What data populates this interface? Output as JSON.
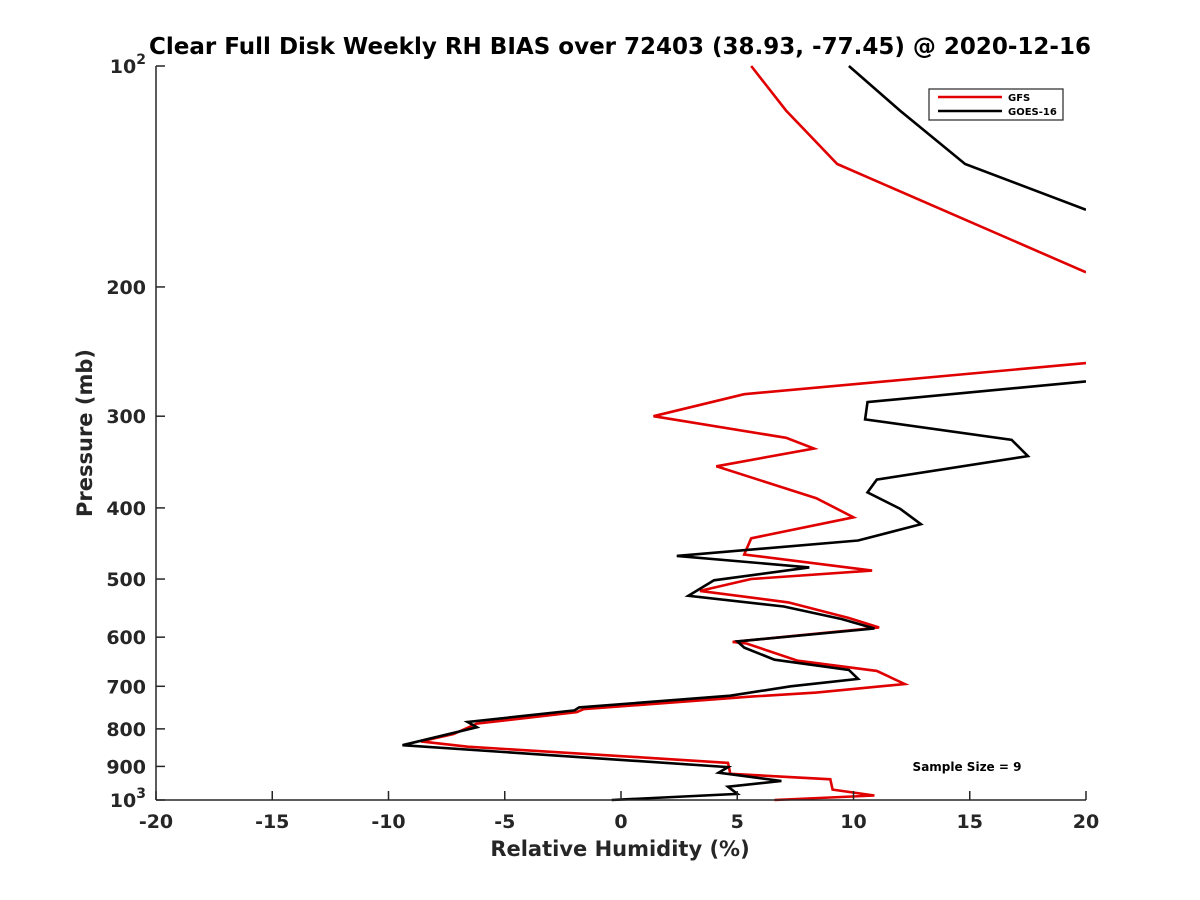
{
  "chart_data": {
    "type": "line",
    "title": "Clear Full Disk Weekly RH BIAS over 72403 (38.93, -77.45) @ 2020-12-16",
    "xlabel": "Relative Humidity (%)",
    "ylabel": "Pressure (mb)",
    "xlim": [
      -20,
      20
    ],
    "ylim": [
      1000,
      100
    ],
    "y_scale": "log",
    "y_reversed": true,
    "grid": false,
    "legend_position": "top-right",
    "x_ticks": [
      -20,
      -15,
      -10,
      -5,
      0,
      5,
      10,
      15,
      20
    ],
    "x_tick_labels": [
      "-20",
      "-15",
      "-10",
      "-5",
      "0",
      "5",
      "10",
      "15",
      "20"
    ],
    "y_ticks": [
      100,
      200,
      300,
      400,
      500,
      600,
      700,
      800,
      900,
      1000
    ],
    "y_tick_labels": [
      {
        "base": "10",
        "exp": "2"
      },
      {
        "base": "200",
        "exp": ""
      },
      {
        "base": "300",
        "exp": ""
      },
      {
        "base": "400",
        "exp": ""
      },
      {
        "base": "500",
        "exp": ""
      },
      {
        "base": "600",
        "exp": ""
      },
      {
        "base": "700",
        "exp": ""
      },
      {
        "base": "800",
        "exp": ""
      },
      {
        "base": "900",
        "exp": ""
      },
      {
        "base": "10",
        "exp": "3"
      }
    ],
    "series": [
      {
        "name": "GFS",
        "color": "#e00000",
        "segments": [
          {
            "x": [
              5.6,
              7.1,
              9.3,
              20.0
            ],
            "y": [
              100,
              115,
              136,
              191
            ]
          },
          {
            "x": [
              20.0,
              5.3,
              1.4,
              7.1,
              8.3,
              4.1,
              8.4,
              10.0,
              5.6,
              5.3,
              10.8,
              5.6,
              3.4,
              7.2,
              9.8,
              11.1,
              4.8,
              5.4,
              7.6,
              11.0,
              12.2,
              8.4,
              5.6,
              -1.6,
              -1.9,
              -6.2,
              -7.2,
              -8.6,
              -6.6,
              0.9,
              4.6,
              4.7,
              9.0,
              9.1,
              10.9,
              6.6
            ],
            "y": [
              254,
              280,
              300,
              321,
              332,
              351,
              388,
              412,
              440,
              463,
              487,
              500,
              519,
              538,
              565,
              582,
              609,
              612,
              646,
              667,
              695,
              714,
              723,
              752,
              759,
              787,
              813,
              832,
              846,
              875,
              890,
              921,
              937,
              968,
              986,
              1000
            ]
          }
        ]
      },
      {
        "name": "GOES-16",
        "color": "#000000",
        "segments": [
          {
            "x": [
              9.8,
              12.0,
              14.8,
              20.0
            ],
            "y": [
              100,
              115,
              136,
              157
            ]
          },
          {
            "x": [
              20.0,
              10.6,
              10.5,
              16.8,
              17.5,
              11.0,
              10.6,
              12.0,
              12.9,
              10.2,
              2.4,
              8.1,
              4.0,
              2.9,
              7.0,
              9.5,
              10.9,
              5.0,
              5.3,
              6.6,
              9.8,
              10.2,
              7.3,
              4.7,
              -1.8,
              -2.0,
              -6.6,
              -6.2,
              -9.4,
              -3.2,
              4.6,
              4.2,
              6.9,
              4.6,
              5.0,
              -0.4
            ],
            "y": [
              269,
              287,
              303,
              323,
              340,
              366,
              381,
              401,
              421,
              443,
              465,
              482,
              502,
              527,
              545,
              567,
              584,
              608,
              620,
              644,
              665,
              684,
              700,
              721,
              748,
              755,
              783,
              796,
              842,
              868,
              902,
              918,
              942,
              959,
              981,
              1000
            ]
          }
        ]
      }
    ],
    "annotations": [
      "Sample Size = 9"
    ]
  }
}
